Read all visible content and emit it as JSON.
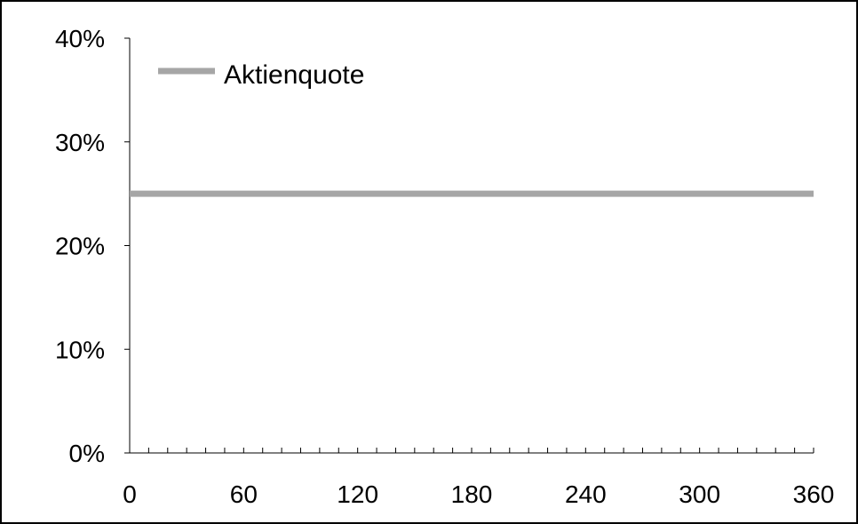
{
  "chart_data": {
    "type": "line",
    "title": "",
    "xlabel": "",
    "ylabel": "",
    "xlim": [
      0,
      360
    ],
    "ylim": [
      0,
      40
    ],
    "x_ticks": [
      0,
      60,
      120,
      180,
      240,
      300,
      360
    ],
    "x_tick_labels": [
      "0",
      "60",
      "120",
      "180",
      "240",
      "300",
      "360"
    ],
    "x_minor_tick_step": 10,
    "y_ticks": [
      0,
      10,
      20,
      30,
      40
    ],
    "y_tick_labels": [
      "0%",
      "10%",
      "20%",
      "30%",
      "40%"
    ],
    "grid": false,
    "legend_position": "top-left",
    "series": [
      {
        "name": "Aktienquote",
        "color": "#a6a6a6",
        "x": [
          0,
          360
        ],
        "y": [
          25,
          25
        ]
      }
    ]
  }
}
